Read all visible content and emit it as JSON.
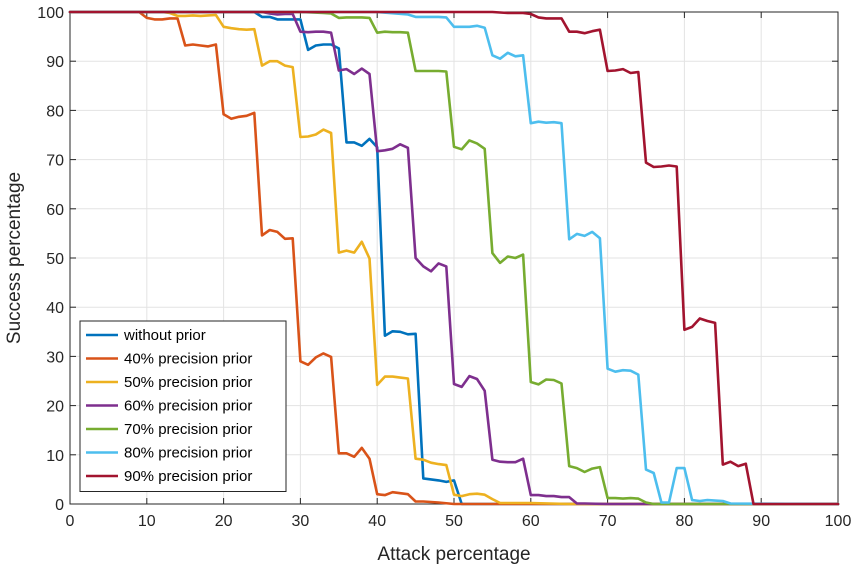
{
  "chart_data": {
    "type": "line",
    "title": "",
    "xlabel": "Attack percentage",
    "ylabel": "Success percentage",
    "xlim": [
      0,
      100
    ],
    "ylim": [
      0,
      100
    ],
    "xticks": [
      0,
      10,
      20,
      30,
      40,
      50,
      60,
      70,
      80,
      90,
      100
    ],
    "yticks": [
      0,
      10,
      20,
      30,
      40,
      50,
      60,
      70,
      80,
      90,
      100
    ],
    "grid": true,
    "legend_position": "bottom-left",
    "series": [
      {
        "name": "without prior",
        "color": "#0072BD",
        "x": [
          0,
          5,
          10,
          15,
          20,
          24,
          25,
          26,
          27,
          28,
          29,
          30,
          31,
          32,
          33,
          34,
          35,
          36,
          37,
          38,
          39,
          40,
          41,
          42,
          43,
          44,
          45,
          46,
          47,
          48,
          49,
          50,
          51,
          55,
          60,
          65,
          70,
          75,
          80,
          85,
          90,
          95,
          100
        ],
        "y": [
          100,
          100,
          100,
          100,
          100,
          100,
          99,
          99,
          98.5,
          98.5,
          98.5,
          98.5,
          92.3,
          93.2,
          93.4,
          93.4,
          92.6,
          73.5,
          73.5,
          72.8,
          74.2,
          72.5,
          34.2,
          35.1,
          35.0,
          34.5,
          34.6,
          5.2,
          5.0,
          4.8,
          4.5,
          4.8,
          0,
          0,
          0,
          0,
          0,
          0,
          0,
          0,
          0,
          0,
          0
        ]
      },
      {
        "name": "40% precision prior",
        "color": "#D95319",
        "x": [
          0,
          5,
          9,
          10,
          11,
          12,
          13,
          14,
          15,
          16,
          17,
          18,
          19,
          20,
          21,
          22,
          23,
          24,
          25,
          26,
          27,
          28,
          29,
          30,
          31,
          32,
          33,
          34,
          35,
          36,
          37,
          38,
          39,
          40,
          41,
          42,
          43,
          44,
          45,
          46,
          47,
          48,
          50,
          52,
          55,
          60,
          100
        ],
        "y": [
          100,
          100,
          100,
          98.8,
          98.5,
          98.5,
          98.7,
          98.7,
          93.2,
          93.4,
          93.2,
          93.0,
          93.4,
          79.2,
          78.3,
          78.7,
          78.9,
          79.5,
          54.6,
          55.7,
          55.3,
          53.9,
          54.0,
          29.0,
          28.3,
          29.8,
          30.6,
          29.9,
          10.3,
          10.3,
          9.6,
          11.4,
          9.2,
          2.0,
          1.8,
          2.4,
          2.2,
          2.0,
          0.5,
          0.5,
          0.4,
          0.3,
          0,
          0,
          0,
          0,
          0
        ]
      },
      {
        "name": "50% precision prior",
        "color": "#EDB120",
        "x": [
          0,
          5,
          10,
          12,
          13,
          14,
          15,
          16,
          17,
          18,
          19,
          20,
          21,
          22,
          23,
          24,
          25,
          26,
          27,
          28,
          29,
          30,
          31,
          32,
          33,
          34,
          35,
          36,
          37,
          38,
          39,
          40,
          41,
          42,
          43,
          44,
          45,
          46,
          47,
          48,
          49,
          50,
          51,
          52,
          53,
          54,
          55,
          56,
          58,
          60,
          65,
          100
        ],
        "y": [
          100,
          100,
          100,
          100,
          99.8,
          99.2,
          99.2,
          99.3,
          99.2,
          99.3,
          99.4,
          97.0,
          96.7,
          96.5,
          96.4,
          96.5,
          89.1,
          90.0,
          90.0,
          89.1,
          88.8,
          74.6,
          74.7,
          75.1,
          76.1,
          75.4,
          51.1,
          51.5,
          51.1,
          53.3,
          49.9,
          24.2,
          25.9,
          25.9,
          25.7,
          25.5,
          9.2,
          9.0,
          8.4,
          8.1,
          7.9,
          1.9,
          1.6,
          2.0,
          2.1,
          1.9,
          1.0,
          0.2,
          0.2,
          0.2,
          0,
          0
        ]
      },
      {
        "name": "60% precision prior",
        "color": "#7E2F8E",
        "x": [
          0,
          5,
          10,
          15,
          20,
          24,
          25,
          26,
          27,
          28,
          29,
          30,
          31,
          32,
          33,
          34,
          35,
          36,
          37,
          38,
          39,
          40,
          41,
          42,
          43,
          44,
          45,
          46,
          47,
          48,
          49,
          50,
          51,
          52,
          53,
          54,
          55,
          56,
          57,
          58,
          59,
          60,
          61,
          62,
          63,
          64,
          65,
          66,
          67,
          70,
          100
        ],
        "y": [
          100,
          100,
          100,
          100,
          100,
          100,
          100,
          99.7,
          99.5,
          99.6,
          99.6,
          96.0,
          95.9,
          96.0,
          96.0,
          95.8,
          88.1,
          88.4,
          87.4,
          88.5,
          87.4,
          71.7,
          71.9,
          72.2,
          73.1,
          72.4,
          50.0,
          48.3,
          47.3,
          48.9,
          48.3,
          24.4,
          23.8,
          26.0,
          25.4,
          23.0,
          9.0,
          8.6,
          8.5,
          8.5,
          9.2,
          1.8,
          1.8,
          1.6,
          1.6,
          1.4,
          1.4,
          0.1,
          0.1,
          0,
          0
        ]
      },
      {
        "name": "70% precision prior",
        "color": "#77AC30",
        "x": [
          0,
          10,
          20,
          30,
          33,
          34,
          35,
          36,
          37,
          38,
          39,
          40,
          41,
          42,
          43,
          44,
          45,
          46,
          47,
          48,
          49,
          50,
          51,
          52,
          53,
          54,
          55,
          56,
          57,
          58,
          59,
          60,
          61,
          62,
          63,
          64,
          65,
          66,
          67,
          68,
          69,
          70,
          71,
          72,
          73,
          74,
          75,
          76,
          100
        ],
        "y": [
          100,
          100,
          100,
          100,
          99.8,
          99.7,
          98.8,
          98.9,
          98.9,
          98.9,
          98.8,
          95.8,
          96.0,
          95.9,
          95.9,
          95.8,
          88.0,
          88.0,
          88.0,
          88.0,
          87.9,
          72.6,
          72.1,
          73.9,
          73.3,
          72.2,
          51.0,
          49.0,
          50.3,
          50.0,
          50.7,
          24.8,
          24.3,
          25.3,
          25.2,
          24.5,
          7.7,
          7.3,
          6.5,
          7.2,
          7.5,
          1.2,
          1.2,
          1.1,
          1.2,
          1.1,
          0.3,
          0,
          0
        ]
      },
      {
        "name": "80% precision prior",
        "color": "#4DBEEE",
        "x": [
          0,
          10,
          20,
          30,
          40,
          44,
          45,
          46,
          47,
          48,
          49,
          50,
          51,
          52,
          53,
          54,
          55,
          56,
          57,
          58,
          59,
          60,
          61,
          62,
          63,
          64,
          65,
          66,
          67,
          68,
          69,
          70,
          71,
          72,
          73,
          74,
          75,
          76,
          77,
          78,
          79,
          80,
          81,
          82,
          83,
          84,
          85,
          86,
          100
        ],
        "y": [
          100,
          100,
          100,
          100,
          100,
          99.5,
          99.0,
          99.0,
          99.0,
          99.0,
          98.9,
          97.0,
          97.0,
          97.0,
          97.2,
          96.8,
          91.2,
          90.5,
          91.7,
          91.0,
          91.2,
          77.4,
          77.7,
          77.5,
          77.6,
          77.4,
          53.8,
          54.9,
          54.5,
          55.3,
          54.0,
          27.5,
          26.9,
          27.2,
          27.1,
          26.3,
          7.0,
          6.3,
          0.3,
          0.3,
          7.3,
          7.3,
          0.8,
          0.6,
          0.8,
          0.7,
          0.6,
          0.1,
          0
        ]
      },
      {
        "name": "90% precision prior",
        "color": "#A2142F",
        "x": [
          0,
          10,
          20,
          30,
          40,
          50,
          55,
          57,
          59,
          60,
          61,
          62,
          63,
          64,
          65,
          66,
          67,
          68,
          69,
          70,
          71,
          72,
          73,
          74,
          75,
          76,
          77,
          78,
          79,
          80,
          81,
          82,
          83,
          84,
          85,
          86,
          87,
          88,
          89,
          90,
          95,
          100
        ],
        "y": [
          100,
          100,
          100,
          100,
          100,
          100,
          100,
          99.8,
          99.8,
          99.6,
          98.9,
          98.7,
          98.7,
          98.7,
          96.0,
          96.0,
          95.7,
          96.1,
          96.4,
          88.0,
          88.1,
          88.4,
          87.6,
          87.8,
          69.4,
          68.5,
          68.6,
          68.8,
          68.6,
          35.4,
          36.0,
          37.7,
          37.2,
          36.8,
          8.0,
          8.6,
          7.7,
          8.2,
          0,
          0,
          0,
          0
        ]
      }
    ]
  }
}
